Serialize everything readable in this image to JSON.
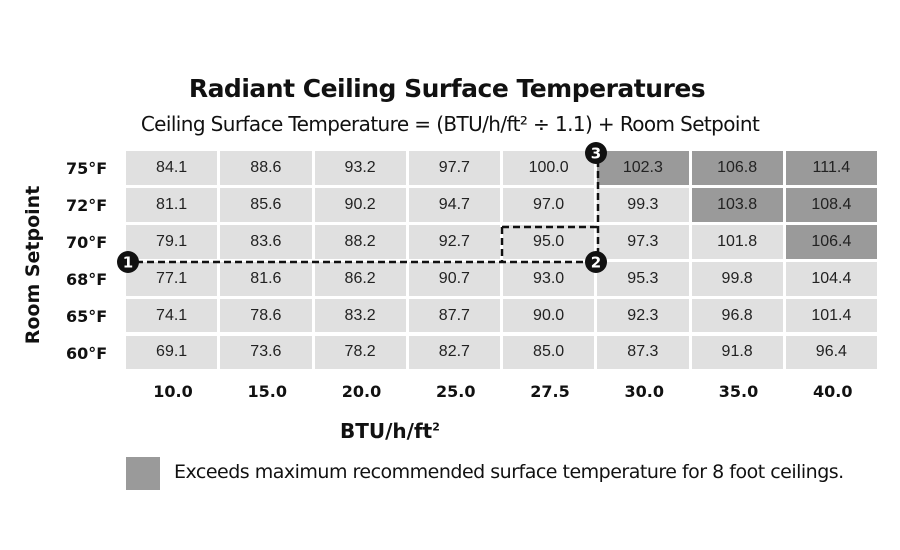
{
  "chart_data": {
    "type": "table",
    "title": "Radiant Ceiling Surface Temperatures",
    "subtitle": "Ceiling Surface Temperature = (BTU/h/ft² ÷ 1.1) + Room Setpoint",
    "xlabel": "BTU/h/ft",
    "xlabel_superscript": "2",
    "ylabel": "Room Setpoint",
    "columns": [
      "10.0",
      "15.0",
      "20.0",
      "25.0",
      "27.5",
      "30.0",
      "35.0",
      "40.0"
    ],
    "rows": [
      {
        "label": "75°F",
        "values": [
          "84.1",
          "88.6",
          "93.2",
          "97.7",
          "100.0",
          "102.3",
          "106.8",
          "111.4"
        ],
        "exceeds": [
          false,
          false,
          false,
          false,
          false,
          true,
          true,
          true
        ]
      },
      {
        "label": "72°F",
        "values": [
          "81.1",
          "85.6",
          "90.2",
          "94.7",
          "97.0",
          "99.3",
          "103.8",
          "108.4"
        ],
        "exceeds": [
          false,
          false,
          false,
          false,
          false,
          false,
          true,
          true
        ]
      },
      {
        "label": "70°F",
        "values": [
          "79.1",
          "83.6",
          "88.2",
          "92.7",
          "95.0",
          "97.3",
          "101.8",
          "106.4"
        ],
        "exceeds": [
          false,
          false,
          false,
          false,
          false,
          false,
          false,
          true
        ]
      },
      {
        "label": "68°F",
        "values": [
          "77.1",
          "81.6",
          "86.2",
          "90.7",
          "93.0",
          "95.3",
          "99.8",
          "104.4"
        ],
        "exceeds": [
          false,
          false,
          false,
          false,
          false,
          false,
          false,
          false
        ]
      },
      {
        "label": "65°F",
        "values": [
          "74.1",
          "78.6",
          "83.2",
          "87.7",
          "90.0",
          "92.3",
          "96.8",
          "101.4"
        ],
        "exceeds": [
          false,
          false,
          false,
          false,
          false,
          false,
          false,
          false
        ]
      },
      {
        "label": "60°F",
        "values": [
          "69.1",
          "73.6",
          "78.2",
          "82.7",
          "85.0",
          "87.3",
          "91.8",
          "96.4"
        ],
        "exceeds": [
          false,
          false,
          false,
          false,
          false,
          false,
          false,
          false
        ]
      }
    ],
    "annotations": [
      {
        "marker": "1",
        "at": "68°F/70°F boundary, left edge"
      },
      {
        "marker": "2",
        "at": "27.5/30.0 boundary, 68°F/70°F boundary"
      },
      {
        "marker": "3",
        "at": "27.5/30.0 boundary, top"
      }
    ],
    "legend": {
      "text": "Exceeds maximum recommended surface temperature for 8 foot ceilings.",
      "placement": "bottom"
    },
    "colors": {
      "normal": "#e0e0e0",
      "exceeds": "#9a9a9a",
      "marker": "#111111"
    }
  }
}
